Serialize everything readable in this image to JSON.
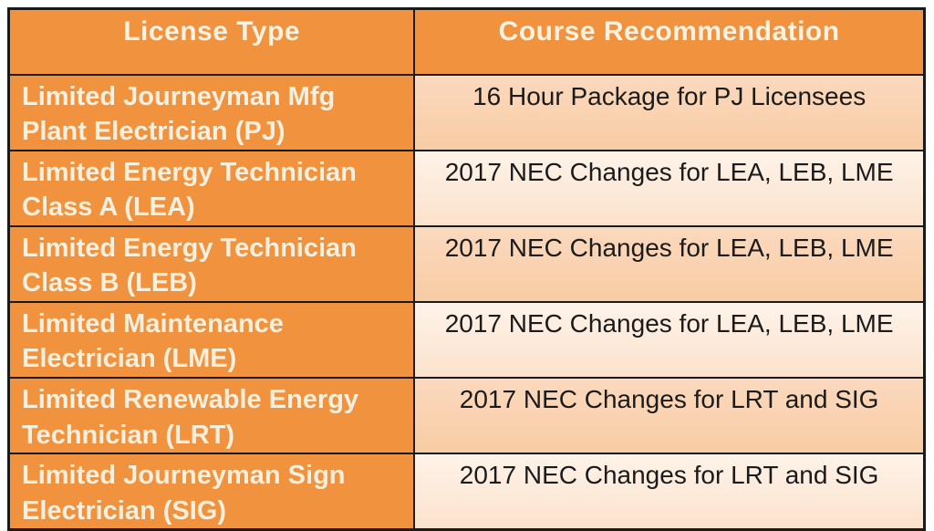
{
  "table": {
    "headers": [
      {
        "label": "License Type"
      },
      {
        "label": "Course Recommendation"
      }
    ],
    "rows": [
      {
        "license": "Limited Journeyman Mfg Plant Electrician (PJ)",
        "course": "16 Hour Package for PJ Licensees"
      },
      {
        "license": "Limited Energy Technician Class A (LEA)",
        "course": "2017 NEC Changes for LEA, LEB, LME"
      },
      {
        "license": "Limited Energy Technician Class B (LEB)",
        "course": "2017 NEC Changes for LEA, LEB, LME"
      },
      {
        "license": "Limited Maintenance Electrician (LME)",
        "course": "2017 NEC Changes for LEA, LEB, LME"
      },
      {
        "license": "Limited Renewable Energy Technician (LRT)",
        "course": "2017 NEC Changes for LRT and SIG"
      },
      {
        "license": "Limited Journeyman Sign Electrician (SIG)",
        "course": "2017 NEC Changes for LRT and SIG"
      }
    ],
    "colors": {
      "header_bg": "#f1923e",
      "header_text": "#faf3e4",
      "license_bg": "#f1923e",
      "license_text": "#f8f0df",
      "course_text": "#1b1b1b",
      "course_bg_odd_top": "#fbd9be",
      "course_bg_odd_bottom": "#f8cca4",
      "course_bg_even_top": "#fef3e9",
      "course_bg_even_bottom": "#fbe2cc",
      "border": "#1a1a1a"
    }
  }
}
